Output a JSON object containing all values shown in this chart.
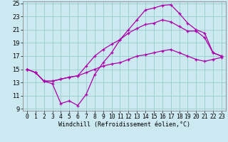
{
  "xlabel": "Windchill (Refroidissement éolien,°C)",
  "background_color": "#cce8f0",
  "grid_color": "#99cccc",
  "line_color": "#aa00aa",
  "xlim": [
    0,
    23
  ],
  "ylim": [
    9,
    25
  ],
  "yticks": [
    9,
    11,
    13,
    15,
    17,
    19,
    21,
    23,
    25
  ],
  "xticks": [
    0,
    1,
    2,
    3,
    4,
    5,
    6,
    7,
    8,
    9,
    10,
    11,
    12,
    13,
    14,
    15,
    16,
    17,
    18,
    19,
    20,
    21,
    22,
    23
  ],
  "line1_x": [
    0,
    1,
    2,
    3,
    4,
    5,
    6,
    7,
    8,
    9,
    10,
    11,
    12,
    13,
    14,
    15,
    16,
    17,
    18,
    19,
    20,
    21,
    22,
    23
  ],
  "line1_y": [
    15.0,
    14.5,
    13.2,
    12.8,
    9.8,
    10.2,
    9.5,
    11.2,
    14.2,
    16.0,
    17.5,
    19.5,
    21.0,
    22.5,
    24.0,
    24.3,
    24.7,
    24.8,
    23.5,
    22.0,
    21.0,
    20.5,
    17.5,
    17.0
  ],
  "line2_x": [
    0,
    1,
    2,
    3,
    4,
    5,
    6,
    7,
    8,
    9,
    10,
    11,
    12,
    13,
    14,
    15,
    16,
    17,
    18,
    19,
    20,
    21,
    22,
    23
  ],
  "line2_y": [
    15.0,
    14.5,
    13.2,
    13.2,
    13.5,
    13.8,
    14.0,
    15.5,
    17.0,
    18.0,
    18.8,
    19.5,
    20.5,
    21.2,
    21.8,
    22.0,
    22.5,
    22.2,
    21.5,
    20.8,
    20.8,
    19.8,
    17.5,
    17.0
  ],
  "line3_x": [
    0,
    1,
    2,
    3,
    4,
    5,
    6,
    7,
    8,
    9,
    10,
    11,
    12,
    13,
    14,
    15,
    16,
    17,
    18,
    19,
    20,
    21,
    22,
    23
  ],
  "line3_y": [
    15.0,
    14.5,
    13.2,
    13.2,
    13.5,
    13.8,
    14.0,
    14.5,
    15.0,
    15.5,
    15.8,
    16.0,
    16.5,
    17.0,
    17.2,
    17.5,
    17.8,
    18.0,
    17.5,
    17.0,
    16.5,
    16.2,
    16.5,
    16.8
  ],
  "xlabel_fontsize": 6.0,
  "tick_fontsize": 5.8,
  "marker_size": 3.5
}
